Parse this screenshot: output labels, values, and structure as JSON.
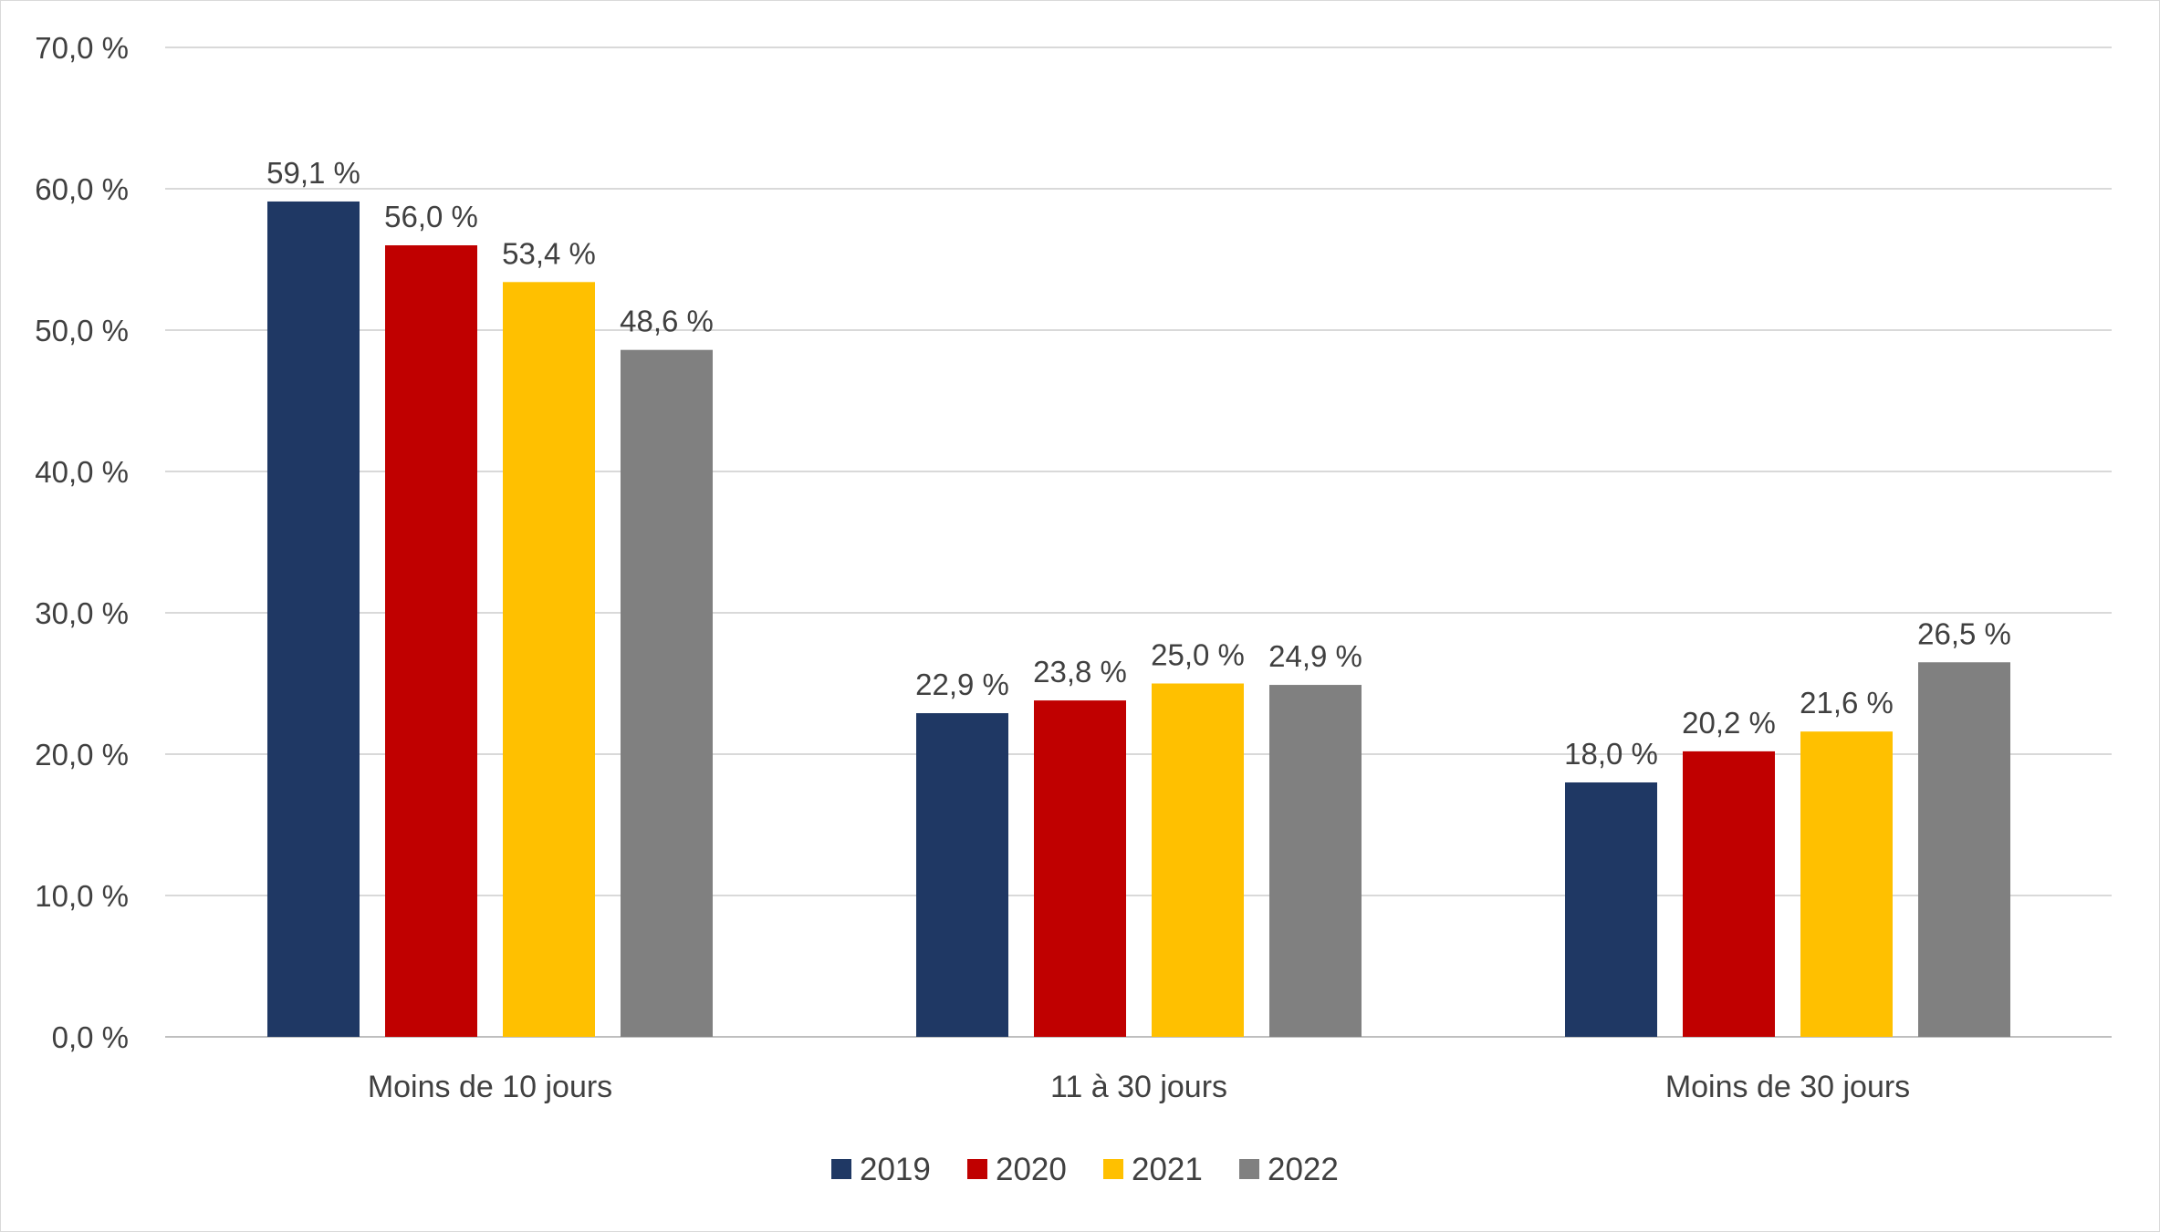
{
  "chart_data": {
    "type": "bar",
    "title": "",
    "xlabel": "",
    "ylabel": "",
    "categories": [
      "Moins de 10 jours",
      "11 à 30 jours",
      "Moins de 30 jours"
    ],
    "series": [
      {
        "name": "2019",
        "color": "#1f3864",
        "values": [
          59.1,
          22.9,
          18.0
        ],
        "labels": [
          "59,1 %",
          "22,9 %",
          "18,0 %"
        ]
      },
      {
        "name": "2020",
        "color": "#c00000",
        "values": [
          56.0,
          23.8,
          20.2
        ],
        "labels": [
          "56,0 %",
          "23,8 %",
          "20,2 %"
        ]
      },
      {
        "name": "2021",
        "color": "#ffc000",
        "values": [
          53.4,
          25.0,
          21.6
        ],
        "labels": [
          "53,4 %",
          "25,0 %",
          "21,6 %"
        ]
      },
      {
        "name": "2022",
        "color": "#808080",
        "values": [
          48.6,
          24.9,
          26.5
        ],
        "labels": [
          "48,6 %",
          "24,9 %",
          "26,5 %"
        ]
      }
    ],
    "ylim": [
      0,
      70
    ],
    "yticks": [
      0,
      10,
      20,
      30,
      40,
      50,
      60,
      70
    ],
    "ytick_labels": [
      "0,0 %",
      "10,0 %",
      "20,0 %",
      "30,0 %",
      "40,0 %",
      "50,0 %",
      "60,0 %",
      "70,0 %"
    ],
    "grid": true,
    "legend_position": "bottom-center"
  }
}
